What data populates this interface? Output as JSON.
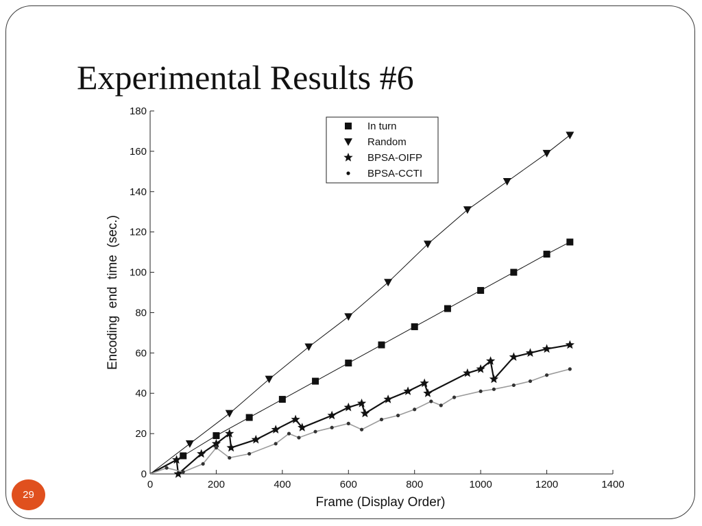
{
  "slide": {
    "title": "Experimental Results #6",
    "page_number": "29"
  },
  "colors": {
    "frame": "#3a3a3a",
    "badge": "#e0501e",
    "series_dark": "#111111",
    "series_gray": "#9a9a9a"
  },
  "chart_data": {
    "type": "line",
    "title": "",
    "xlabel": "Frame (Display Order)",
    "ylabel": "Encoding  end  time  (sec.)",
    "xlim": [
      0,
      1400
    ],
    "ylim": [
      0,
      180
    ],
    "xticks": [
      0,
      200,
      400,
      600,
      800,
      1000,
      1200,
      1400
    ],
    "yticks": [
      0,
      20,
      40,
      60,
      80,
      100,
      120,
      140,
      160,
      180
    ],
    "grid": false,
    "legend": {
      "position": "top-center"
    },
    "series": [
      {
        "name": "In turn",
        "marker": "square",
        "points": [
          [
            0,
            0
          ],
          [
            100,
            9
          ],
          [
            200,
            19
          ],
          [
            300,
            28
          ],
          [
            400,
            37
          ],
          [
            500,
            46
          ],
          [
            600,
            55
          ],
          [
            700,
            64
          ],
          [
            800,
            73
          ],
          [
            900,
            82
          ],
          [
            1000,
            91
          ],
          [
            1100,
            100
          ],
          [
            1200,
            109
          ],
          [
            1270,
            115
          ]
        ]
      },
      {
        "name": "Random",
        "marker": "triangle-down",
        "points": [
          [
            0,
            0
          ],
          [
            120,
            15
          ],
          [
            240,
            30
          ],
          [
            360,
            47
          ],
          [
            480,
            63
          ],
          [
            600,
            78
          ],
          [
            720,
            95
          ],
          [
            840,
            114
          ],
          [
            960,
            131
          ],
          [
            1080,
            145
          ],
          [
            1200,
            159
          ],
          [
            1270,
            168
          ]
        ]
      },
      {
        "name": "BPSA-OIFP",
        "marker": "star",
        "points": [
          [
            0,
            0
          ],
          [
            80,
            7
          ],
          [
            85,
            0
          ],
          [
            155,
            10
          ],
          [
            200,
            15
          ],
          [
            240,
            20
          ],
          [
            245,
            13
          ],
          [
            320,
            17
          ],
          [
            380,
            22
          ],
          [
            440,
            27
          ],
          [
            460,
            23
          ],
          [
            550,
            29
          ],
          [
            600,
            33
          ],
          [
            640,
            35
          ],
          [
            650,
            30
          ],
          [
            720,
            37
          ],
          [
            780,
            41
          ],
          [
            830,
            45
          ],
          [
            840,
            40
          ],
          [
            960,
            50
          ],
          [
            1000,
            52
          ],
          [
            1030,
            56
          ],
          [
            1040,
            47
          ],
          [
            1100,
            58
          ],
          [
            1150,
            60
          ],
          [
            1200,
            62
          ],
          [
            1270,
            64
          ]
        ]
      },
      {
        "name": "BPSA-CCTI",
        "marker": "dot",
        "points": [
          [
            0,
            0
          ],
          [
            50,
            3
          ],
          [
            100,
            1
          ],
          [
            160,
            5
          ],
          [
            200,
            13
          ],
          [
            240,
            8
          ],
          [
            300,
            10
          ],
          [
            380,
            15
          ],
          [
            420,
            20
          ],
          [
            450,
            18
          ],
          [
            500,
            21
          ],
          [
            550,
            23
          ],
          [
            600,
            25
          ],
          [
            640,
            22
          ],
          [
            700,
            27
          ],
          [
            750,
            29
          ],
          [
            800,
            32
          ],
          [
            850,
            36
          ],
          [
            880,
            34
          ],
          [
            920,
            38
          ],
          [
            1000,
            41
          ],
          [
            1040,
            42
          ],
          [
            1100,
            44
          ],
          [
            1150,
            46
          ],
          [
            1200,
            49
          ],
          [
            1270,
            52
          ]
        ]
      }
    ]
  }
}
